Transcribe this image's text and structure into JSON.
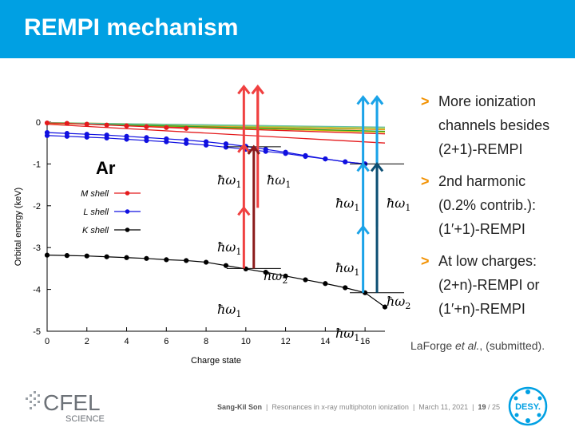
{
  "slide": {
    "title": "REMPI mechanism",
    "bullets": [
      {
        "marker": ">",
        "lines": [
          "More ionization",
          "channels besides",
          "(2+1)-REMPI"
        ]
      },
      {
        "marker": ">",
        "lines": [
          "2nd harmonic",
          "(0.2% contrib.):",
          "(1′+1)-REMPI"
        ]
      },
      {
        "marker": ">",
        "lines": [
          "At low charges:",
          "(2+n)-REMPI or",
          "(1′+n)-REMPI"
        ]
      }
    ],
    "citation": {
      "author": "LaForge ",
      "etal": "et al.",
      "rest": ", (submitted)."
    },
    "footer": {
      "presenter": "Sang-Kil Son",
      "talk": "Resonances in x-ray multiphoton ionization",
      "date": "March 11, 2021",
      "page": "19",
      "total": "/ 25"
    },
    "logos": {
      "cfel_top": "CFEL",
      "cfel_bottom": "SCIENCE",
      "desy": "DESY."
    }
  },
  "chart_data": {
    "type": "line",
    "element": "Ar",
    "xlabel": "Charge state",
    "ylabel": "Orbital energy (keV)",
    "xlim": [
      0,
      17
    ],
    "ylim": [
      -5,
      0
    ],
    "xticks": [
      0,
      2,
      4,
      6,
      8,
      10,
      12,
      14,
      16
    ],
    "yticks": [
      0,
      -1,
      -2,
      -3,
      -4,
      -5
    ],
    "legend": [
      {
        "label": "M shell",
        "color": "#e41a1c"
      },
      {
        "label": "L shell",
        "color": "#1010e0"
      },
      {
        "label": "K shell",
        "color": "#000000"
      }
    ],
    "series": [
      {
        "name": "M shell",
        "color": "#e41a1c",
        "x": [
          0,
          1,
          2,
          3,
          4,
          5,
          6,
          7
        ],
        "y": [
          -0.02,
          -0.03,
          -0.05,
          -0.07,
          -0.09,
          -0.11,
          -0.13,
          -0.15
        ]
      },
      {
        "name": "L shell",
        "color": "#1010e0",
        "x": [
          0,
          1,
          2,
          3,
          4,
          5,
          6,
          7,
          8,
          9,
          10,
          11,
          12,
          13,
          14,
          15,
          16
        ],
        "y": [
          -0.25,
          -0.27,
          -0.29,
          -0.31,
          -0.34,
          -0.37,
          -0.4,
          -0.43,
          -0.47,
          -0.52,
          -0.58,
          -0.65,
          -0.72,
          -0.8,
          -0.88,
          -0.95,
          -1.0
        ]
      },
      {
        "name": "L shell",
        "color": "#1010e0",
        "x": [
          0,
          1,
          2,
          3,
          4,
          5,
          6,
          7,
          8,
          9,
          10,
          11,
          12,
          13,
          14,
          15,
          16
        ],
        "y": [
          -0.32,
          -0.34,
          -0.36,
          -0.38,
          -0.41,
          -0.44,
          -0.47,
          -0.51,
          -0.55,
          -0.6,
          -0.65,
          -0.7,
          -0.75,
          -0.82,
          -0.88,
          -0.95,
          -1.0
        ]
      },
      {
        "name": "K shell",
        "color": "#000000",
        "x": [
          0,
          1,
          2,
          3,
          4,
          5,
          6,
          7,
          8,
          9,
          10,
          11,
          12,
          13,
          14,
          15,
          16,
          17
        ],
        "y": [
          -3.18,
          -3.19,
          -3.2,
          -3.22,
          -3.24,
          -3.26,
          -3.29,
          -3.31,
          -3.35,
          -3.43,
          -3.51,
          -3.59,
          -3.68,
          -3.77,
          -3.86,
          -3.96,
          -4.08,
          -4.42
        ]
      }
    ],
    "level_lines": [
      {
        "color": "#e41a1c",
        "x": [
          0,
          17
        ],
        "y": [
          -0.05,
          -0.5
        ]
      },
      {
        "color": "#e41a1c",
        "x": [
          0,
          17
        ],
        "y": [
          -0.02,
          -0.28
        ]
      },
      {
        "color": "#ff8c1a",
        "x": [
          0,
          17
        ],
        "y": [
          -0.03,
          -0.18
        ]
      },
      {
        "color": "#ffb000",
        "x": [
          0,
          17
        ],
        "y": [
          -0.01,
          -0.13
        ]
      },
      {
        "color": "#d4c400",
        "x": [
          0,
          17
        ],
        "y": [
          -0.02,
          -0.24
        ]
      },
      {
        "color": "#8fd14f",
        "x": [
          0,
          17
        ],
        "y": [
          -0.01,
          -0.16
        ]
      },
      {
        "color": "#2ca02c",
        "x": [
          0,
          17
        ],
        "y": [
          -0.02,
          -0.22
        ]
      },
      {
        "color": "#66c2a5",
        "x": [
          0,
          17
        ],
        "y": [
          -0.015,
          -0.12
        ]
      }
    ],
    "transitions": [
      {
        "x": 10.4,
        "y_from": -3.5,
        "y_to": -0.59,
        "color": "#8b1a1a",
        "label": "ħω2"
      },
      {
        "x": 16.6,
        "y_from": -4.08,
        "y_to": -1.0,
        "color": "#0c4f73",
        "label": "ħω2"
      }
    ],
    "photon_stacks": [
      {
        "x": 9.9,
        "y_from": -3.5,
        "y_to": 0.85,
        "color": "#f04040",
        "label": "ħω1",
        "steps": [
          -3.5,
          -2.05,
          -0.55,
          0.85
        ]
      },
      {
        "x": 10.6,
        "y_to": 0.85,
        "color": "#f04040",
        "label": "ħω1"
      },
      {
        "x": 15.9,
        "y_from": -4.08,
        "y_to": 0.6,
        "color": "#1aa3e8",
        "label": "ħω1",
        "steps": [
          -4.08,
          -2.5,
          -1.0,
          0.6
        ]
      },
      {
        "x": 16.6,
        "y_to": 0.6,
        "color": "#1aa3e8",
        "label": "ħω1"
      }
    ],
    "photon_labels": [
      "ħω1",
      "ħω1",
      "ħω1",
      "ħω1",
      "ħω1",
      "ħω1",
      "ħω1",
      "ħω1",
      "ħω2",
      "ħω2"
    ],
    "grid": false,
    "legend_position": "left"
  }
}
